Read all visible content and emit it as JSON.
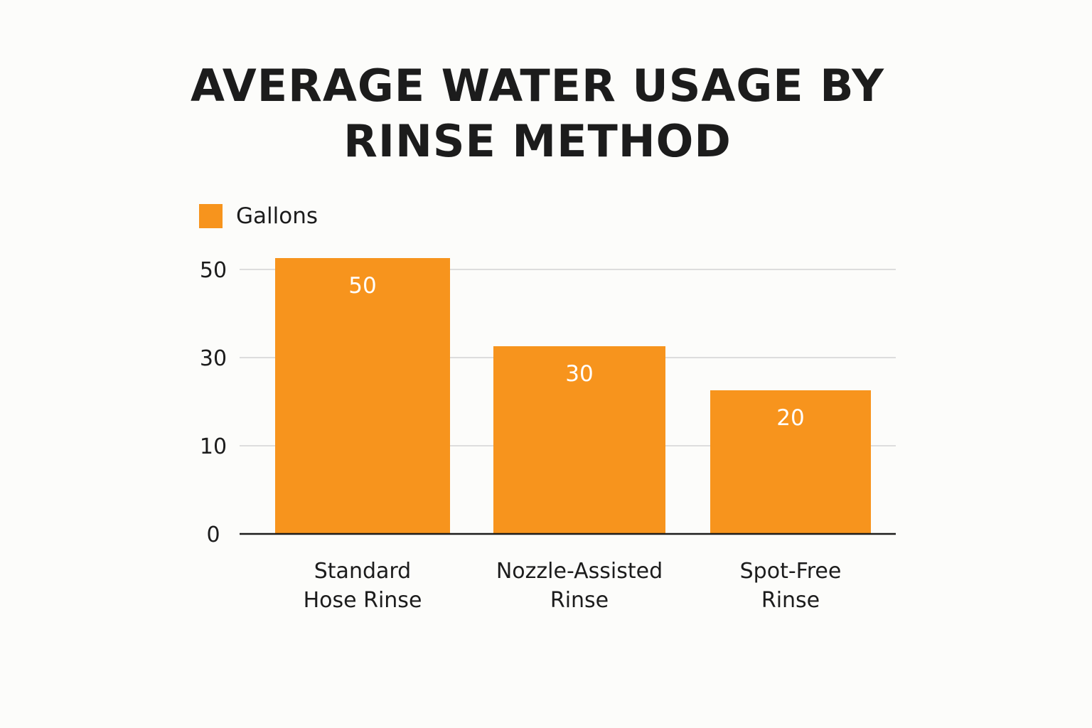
{
  "chart_data": {
    "type": "bar",
    "title_lines": [
      "AVERAGE WATER USAGE BY",
      "RINSE METHOD"
    ],
    "categories": [
      [
        "Standard",
        "Hose Rinse"
      ],
      [
        "Nozzle-Assisted",
        "Rinse"
      ],
      [
        "Spot-Free",
        "Rinse"
      ]
    ],
    "series": [
      {
        "name": "Gallons",
        "values": [
          50,
          30,
          20
        ],
        "color": "#f7941d"
      }
    ],
    "yticks": [
      {
        "value": 0,
        "label": "0"
      },
      {
        "value": 10,
        "label": "10"
      },
      {
        "value": 30,
        "label": "30"
      },
      {
        "value": 50,
        "label": "50"
      }
    ],
    "legend_position": "top-left",
    "grid": true,
    "gridline_color": "#dddddd",
    "axis_color": "#1c1c1c"
  }
}
